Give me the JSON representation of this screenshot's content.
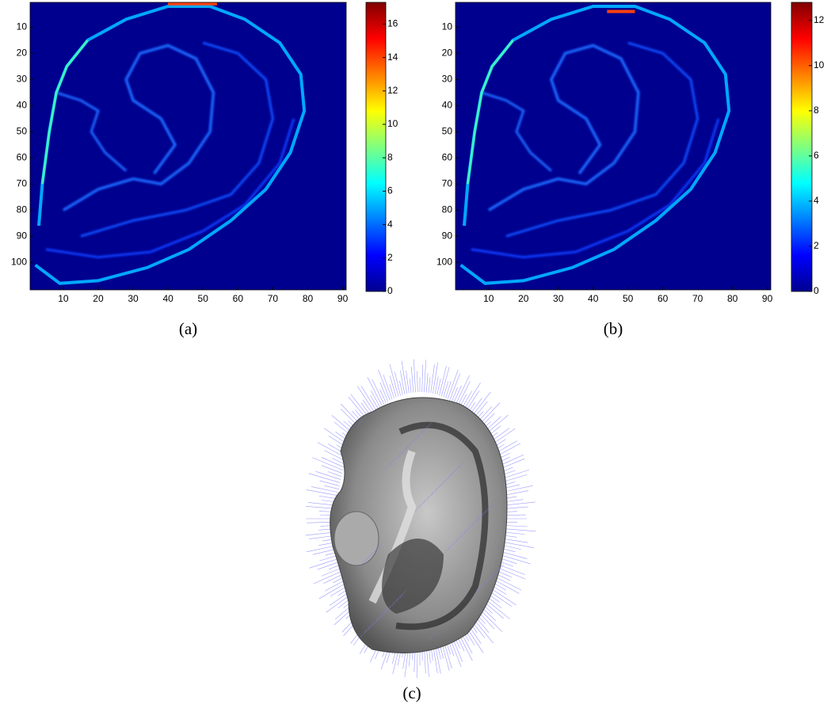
{
  "chart_data": [
    {
      "type": "heatmap",
      "caption": "(a)",
      "colormap": "jet",
      "y_reversed": true,
      "xlim": [
        0.5,
        91
      ],
      "ylim": [
        0.5,
        110.5
      ],
      "xticks": [
        10,
        20,
        30,
        40,
        50,
        60,
        70,
        80,
        90
      ],
      "yticks": [
        10,
        20,
        30,
        40,
        50,
        60,
        70,
        80,
        90,
        100
      ],
      "colorbar": {
        "lim": [
          0,
          17.3
        ],
        "ticks": [
          0,
          2,
          4,
          6,
          8,
          10,
          12,
          14,
          16
        ]
      }
    },
    {
      "type": "heatmap",
      "caption": "(b)",
      "colormap": "jet",
      "y_reversed": true,
      "xlim": [
        0.5,
        91
      ],
      "ylim": [
        0.5,
        110.5
      ],
      "xticks": [
        10,
        20,
        30,
        40,
        50,
        60,
        70,
        80,
        90
      ],
      "yticks": [
        10,
        20,
        30,
        40,
        50,
        60,
        70,
        80,
        90,
        100
      ],
      "colorbar": {
        "lim": [
          0,
          12.8
        ],
        "ticks": [
          0,
          2,
          4,
          6,
          8,
          10,
          12
        ]
      }
    }
  ],
  "figure_c": {
    "caption": "(c)"
  }
}
